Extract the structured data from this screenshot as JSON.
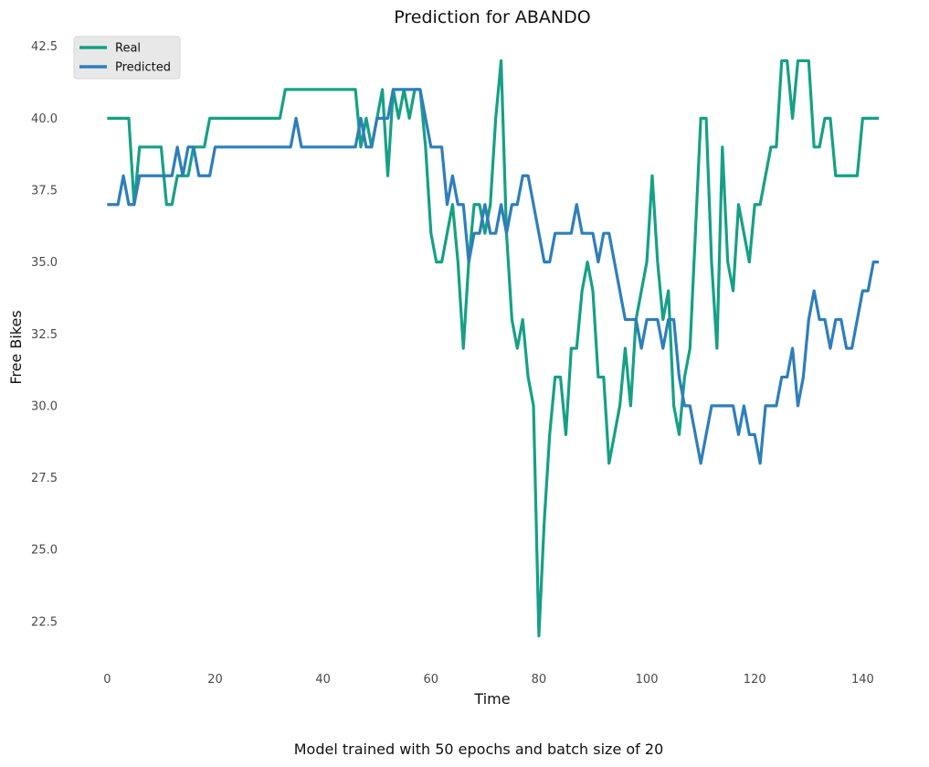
{
  "chart_data": {
    "type": "line",
    "title": "Prediction for ABANDO",
    "xlabel": "Time",
    "ylabel": "Free Bikes",
    "caption": "Model trained with 50 epochs and batch size of 20",
    "xlim": [
      -7,
      144
    ],
    "ylim": [
      21,
      43
    ],
    "xticks": [
      0,
      20,
      40,
      60,
      80,
      100,
      120,
      140
    ],
    "xtick_labels": [
      "0",
      "20",
      "40",
      "60",
      "80",
      "100",
      "120",
      "140"
    ],
    "yticks": [
      22.5,
      25.0,
      27.5,
      30.0,
      32.5,
      35.0,
      37.5,
      40.0,
      42.5
    ],
    "ytick_labels": [
      "22.5",
      "25.0",
      "27.5",
      "30.0",
      "32.5",
      "35.0",
      "37.5",
      "40.0",
      "42.5"
    ],
    "grid": false,
    "legend_position": "top-left",
    "series": [
      {
        "name": "Real",
        "color": "#16a085",
        "x": [
          0,
          1,
          2,
          3,
          4,
          5,
          6,
          7,
          8,
          9,
          10,
          11,
          12,
          13,
          14,
          15,
          16,
          17,
          18,
          19,
          20,
          21,
          22,
          23,
          24,
          25,
          26,
          27,
          28,
          29,
          30,
          31,
          32,
          33,
          34,
          35,
          36,
          37,
          38,
          39,
          40,
          41,
          42,
          43,
          44,
          45,
          46,
          47,
          48,
          49,
          50,
          51,
          52,
          53,
          54,
          55,
          56,
          57,
          58,
          59,
          60,
          61,
          62,
          63,
          64,
          65,
          66,
          67,
          68,
          69,
          70,
          71,
          72,
          73,
          74,
          75,
          76,
          77,
          78,
          79,
          80,
          81,
          82,
          83,
          84,
          85,
          86,
          87,
          88,
          89,
          90,
          91,
          92,
          93,
          94,
          95,
          96,
          97,
          98,
          99,
          100,
          101,
          102,
          103,
          104,
          105,
          106,
          107,
          108,
          109,
          110,
          111,
          112,
          113,
          114,
          115,
          116,
          117,
          118,
          119,
          120,
          121,
          122,
          123,
          124,
          125,
          126,
          127,
          128,
          129,
          130,
          131,
          132,
          133,
          134,
          135,
          136,
          137,
          138,
          139,
          140,
          141,
          142,
          143
        ],
        "values": [
          40,
          40,
          40,
          40,
          40,
          37,
          39,
          39,
          39,
          39,
          39,
          37,
          37,
          38,
          38,
          38,
          39,
          39,
          39,
          40,
          40,
          40,
          40,
          40,
          40,
          40,
          40,
          40,
          40,
          40,
          40,
          40,
          40,
          41,
          41,
          41,
          41,
          41,
          41,
          41,
          41,
          41,
          41,
          41,
          41,
          41,
          41,
          39,
          40,
          39,
          40,
          41,
          38,
          41,
          40,
          41,
          40,
          41,
          41,
          39,
          36,
          35,
          35,
          36,
          37,
          35,
          32,
          35,
          37,
          37,
          36,
          37,
          40,
          42,
          36,
          33,
          32,
          33,
          31,
          30,
          22,
          26,
          29,
          31,
          31,
          29,
          32,
          32,
          34,
          35,
          34,
          31,
          31,
          28,
          29,
          30,
          32,
          30,
          33,
          34,
          35,
          38,
          35,
          33,
          34,
          30,
          29,
          31,
          32,
          36,
          40,
          40,
          35,
          32,
          39,
          35,
          34,
          37,
          36,
          35,
          37,
          37,
          38,
          39,
          39,
          42,
          42,
          40,
          42,
          42,
          42,
          39,
          39,
          40,
          40,
          38,
          38,
          38,
          38,
          38,
          40,
          40,
          40,
          40
        ]
      },
      {
        "name": "Predicted",
        "color": "#2e7ebb",
        "x": [
          0,
          1,
          2,
          3,
          4,
          5,
          6,
          7,
          8,
          9,
          10,
          11,
          12,
          13,
          14,
          15,
          16,
          17,
          18,
          19,
          20,
          21,
          22,
          23,
          24,
          25,
          26,
          27,
          28,
          29,
          30,
          31,
          32,
          33,
          34,
          35,
          36,
          37,
          38,
          39,
          40,
          41,
          42,
          43,
          44,
          45,
          46,
          47,
          48,
          49,
          50,
          51,
          52,
          53,
          54,
          55,
          56,
          57,
          58,
          59,
          60,
          61,
          62,
          63,
          64,
          65,
          66,
          67,
          68,
          69,
          70,
          71,
          72,
          73,
          74,
          75,
          76,
          77,
          78,
          79,
          80,
          81,
          82,
          83,
          84,
          85,
          86,
          87,
          88,
          89,
          90,
          91,
          92,
          93,
          94,
          95,
          96,
          97,
          98,
          99,
          100,
          101,
          102,
          103,
          104,
          105,
          106,
          107,
          108,
          109,
          110,
          111,
          112,
          113,
          114,
          115,
          116,
          117,
          118,
          119,
          120,
          121,
          122,
          123,
          124,
          125,
          126,
          127,
          128,
          129,
          130,
          131,
          132,
          133,
          134,
          135,
          136,
          137,
          138,
          139,
          140,
          141,
          142,
          143
        ],
        "values": [
          37,
          37,
          37,
          38,
          37,
          37,
          38,
          38,
          38,
          38,
          38,
          38,
          38,
          39,
          38,
          39,
          39,
          38,
          38,
          38,
          39,
          39,
          39,
          39,
          39,
          39,
          39,
          39,
          39,
          39,
          39,
          39,
          39,
          39,
          39,
          40,
          39,
          39,
          39,
          39,
          39,
          39,
          39,
          39,
          39,
          39,
          39,
          40,
          39,
          39,
          40,
          40,
          40,
          41,
          41,
          41,
          41,
          41,
          41,
          40,
          39,
          39,
          39,
          37,
          38,
          37,
          37,
          35,
          36,
          36,
          37,
          36,
          36,
          37,
          36,
          37,
          37,
          38,
          38,
          37,
          36,
          35,
          35,
          36,
          36,
          36,
          36,
          37,
          36,
          36,
          36,
          35,
          36,
          36,
          35,
          34,
          33,
          33,
          33,
          32,
          33,
          33,
          33,
          32,
          33,
          33,
          31,
          30,
          30,
          29,
          28,
          29,
          30,
          30,
          30,
          30,
          30,
          29,
          30,
          29,
          29,
          28,
          30,
          30,
          30,
          31,
          31,
          32,
          30,
          31,
          33,
          34,
          33,
          33,
          32,
          33,
          33,
          32,
          32,
          33,
          34,
          34,
          35,
          35
        ]
      }
    ]
  }
}
